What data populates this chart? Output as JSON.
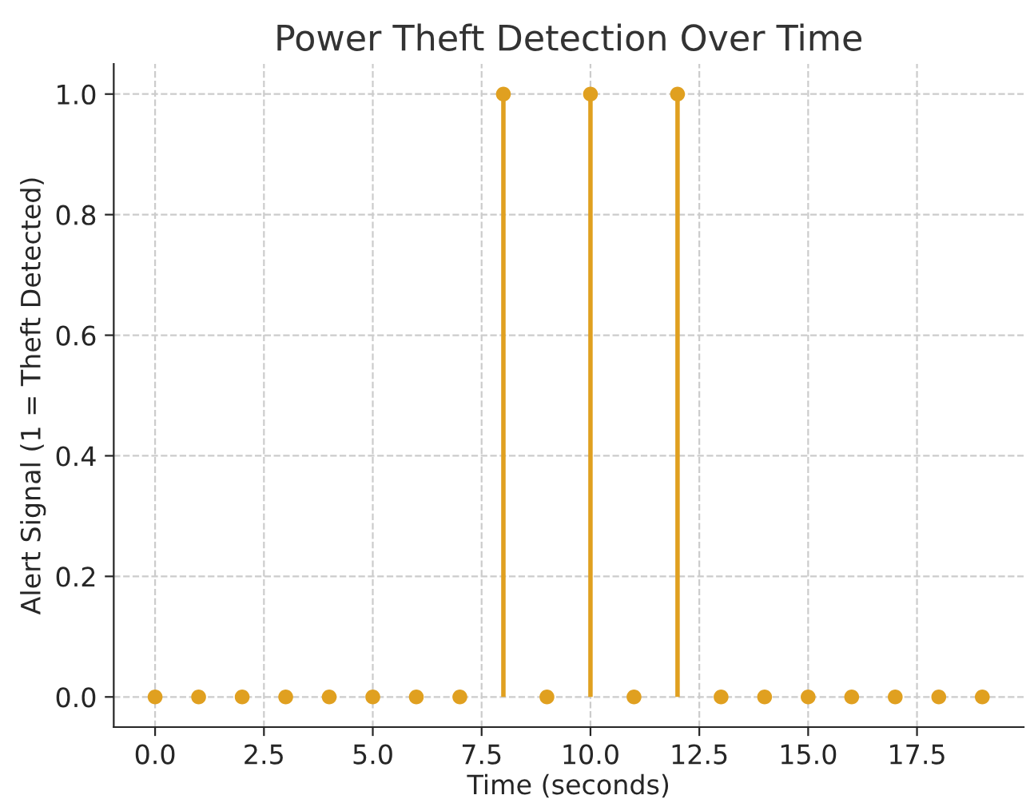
{
  "chart_data": {
    "type": "lollipop",
    "title": "Power Theft Detection Over Time",
    "xlabel": "Time (seconds)",
    "ylabel": "Alert Signal (1 = Theft Detected)",
    "x": [
      0,
      1,
      2,
      3,
      4,
      5,
      6,
      7,
      8,
      9,
      10,
      11,
      12,
      13,
      14,
      15,
      16,
      17,
      18,
      19
    ],
    "series": [
      {
        "color": "#e0a020",
        "values": [
          0,
          0,
          0,
          0,
          0,
          0,
          0,
          0,
          1,
          0,
          1,
          0,
          1,
          0,
          0,
          0,
          0,
          0,
          0,
          0
        ]
      }
    ],
    "xlim": [
      -0.95,
      19.95
    ],
    "ylim": [
      -0.05,
      1.05
    ],
    "xticks": [
      {
        "value": 0,
        "label": "0.0"
      },
      {
        "value": 2.5,
        "label": "2.5"
      },
      {
        "value": 5,
        "label": "5.0"
      },
      {
        "value": 7.5,
        "label": "7.5"
      },
      {
        "value": 10,
        "label": "10.0"
      },
      {
        "value": 12.5,
        "label": "12.5"
      },
      {
        "value": 15,
        "label": "15.0"
      },
      {
        "value": 17.5,
        "label": "17.5"
      }
    ],
    "yticks": [
      {
        "value": 0,
        "label": "0.0"
      },
      {
        "value": 0.2,
        "label": "0.2"
      },
      {
        "value": 0.4,
        "label": "0.4"
      },
      {
        "value": 0.6,
        "label": "0.6"
      },
      {
        "value": 0.8,
        "label": "0.8"
      },
      {
        "value": 1.0,
        "label": "1.0"
      }
    ],
    "grid": true,
    "marker": "circle",
    "line_style": "solid"
  }
}
